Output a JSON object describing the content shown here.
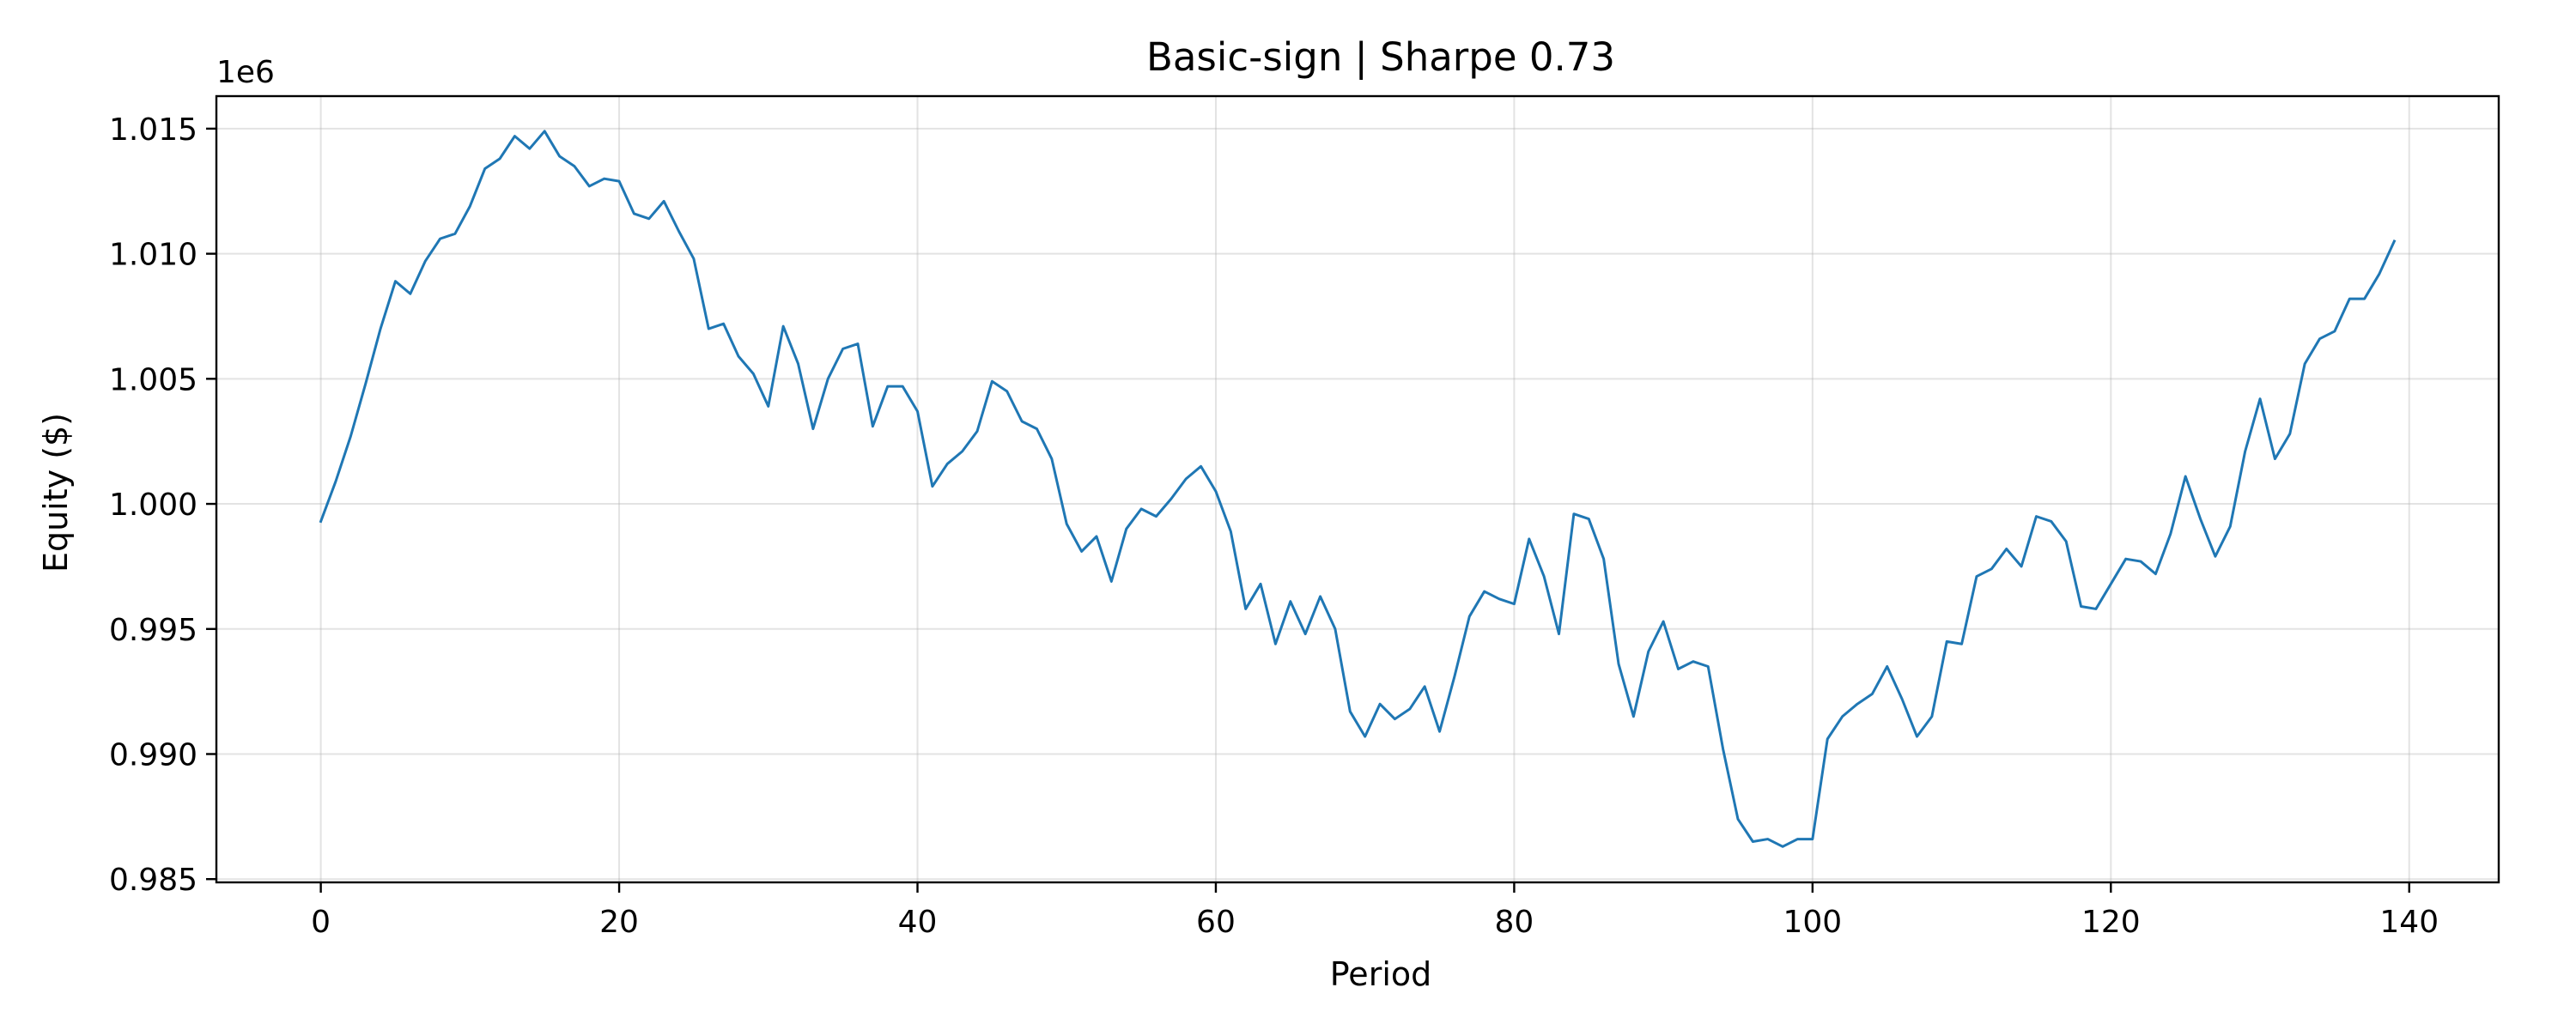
{
  "chart_data": {
    "type": "line",
    "title": "Basic-sign | Sharpe 0.73",
    "xlabel": "Period",
    "ylabel": "Equity ($)",
    "y_offset_label": "1e6",
    "xlim": [
      -7,
      146
    ],
    "ylim": [
      0.98487,
      1.0163
    ],
    "x_ticks": [
      0,
      20,
      40,
      60,
      80,
      100,
      120,
      140
    ],
    "x_tick_labels": [
      "0",
      "20",
      "40",
      "60",
      "80",
      "100",
      "120",
      "140"
    ],
    "y_ticks": [
      0.985,
      0.99,
      0.995,
      1.0,
      1.005,
      1.01,
      1.015
    ],
    "y_tick_labels": [
      "0.985",
      "0.990",
      "0.995",
      "1.000",
      "1.005",
      "1.010",
      "1.015"
    ],
    "grid": true,
    "color": "#1f77b4",
    "series": [
      {
        "x_start": 0,
        "values": [
          0.9993,
          1.0009,
          1.0027,
          1.0048,
          1.007,
          1.0089,
          1.0084,
          1.0097,
          1.0106,
          1.0108,
          1.0119,
          1.0134,
          1.0138,
          1.0147,
          1.0142,
          1.0149,
          1.0139,
          1.0135,
          1.0127,
          1.013,
          1.0129,
          1.0116,
          1.0114,
          1.0121,
          1.0109,
          1.0098,
          1.007,
          1.0072,
          1.0059,
          1.0052,
          1.0039,
          1.0071,
          1.0056,
          1.003,
          1.005,
          1.0062,
          1.0064,
          1.0031,
          1.0047,
          1.0047,
          1.0037,
          1.0007,
          1.0016,
          1.0021,
          1.0029,
          1.0049,
          1.0045,
          1.0033,
          1.003,
          1.0018,
          0.9992,
          0.9981,
          0.9987,
          0.9969,
          0.999,
          0.9998,
          0.9995,
          1.0002,
          1.001,
          1.0015,
          1.0005,
          0.9989,
          0.9958,
          0.9968,
          0.9944,
          0.9961,
          0.9948,
          0.9963,
          0.995,
          0.9917,
          0.9907,
          0.992,
          0.9914,
          0.9918,
          0.9927,
          0.9909,
          0.9931,
          0.9955,
          0.9965,
          0.9962,
          0.996,
          0.9986,
          0.9971,
          0.9948,
          0.9996,
          0.9994,
          0.9978,
          0.9936,
          0.9915,
          0.9941,
          0.9953,
          0.9934,
          0.9937,
          0.9935,
          0.9902,
          0.9874,
          0.9865,
          0.9866,
          0.9863,
          0.9866,
          0.9866,
          0.9906,
          0.9915,
          0.992,
          0.9924,
          0.9935,
          0.9922,
          0.9907,
          0.9915,
          0.9945,
          0.9944,
          0.9971,
          0.9974,
          0.9982,
          0.9975,
          0.9995,
          0.9993,
          0.9985,
          0.9959,
          0.9958,
          0.9968,
          0.9978,
          0.9977,
          0.9972,
          0.9988,
          1.0011,
          0.9994,
          0.9979,
          0.9991,
          1.0021,
          1.0042,
          1.0018,
          1.0028,
          1.0056,
          1.0066,
          1.0069,
          1.0082,
          1.0082,
          1.0092,
          1.0105
        ]
      }
    ]
  }
}
